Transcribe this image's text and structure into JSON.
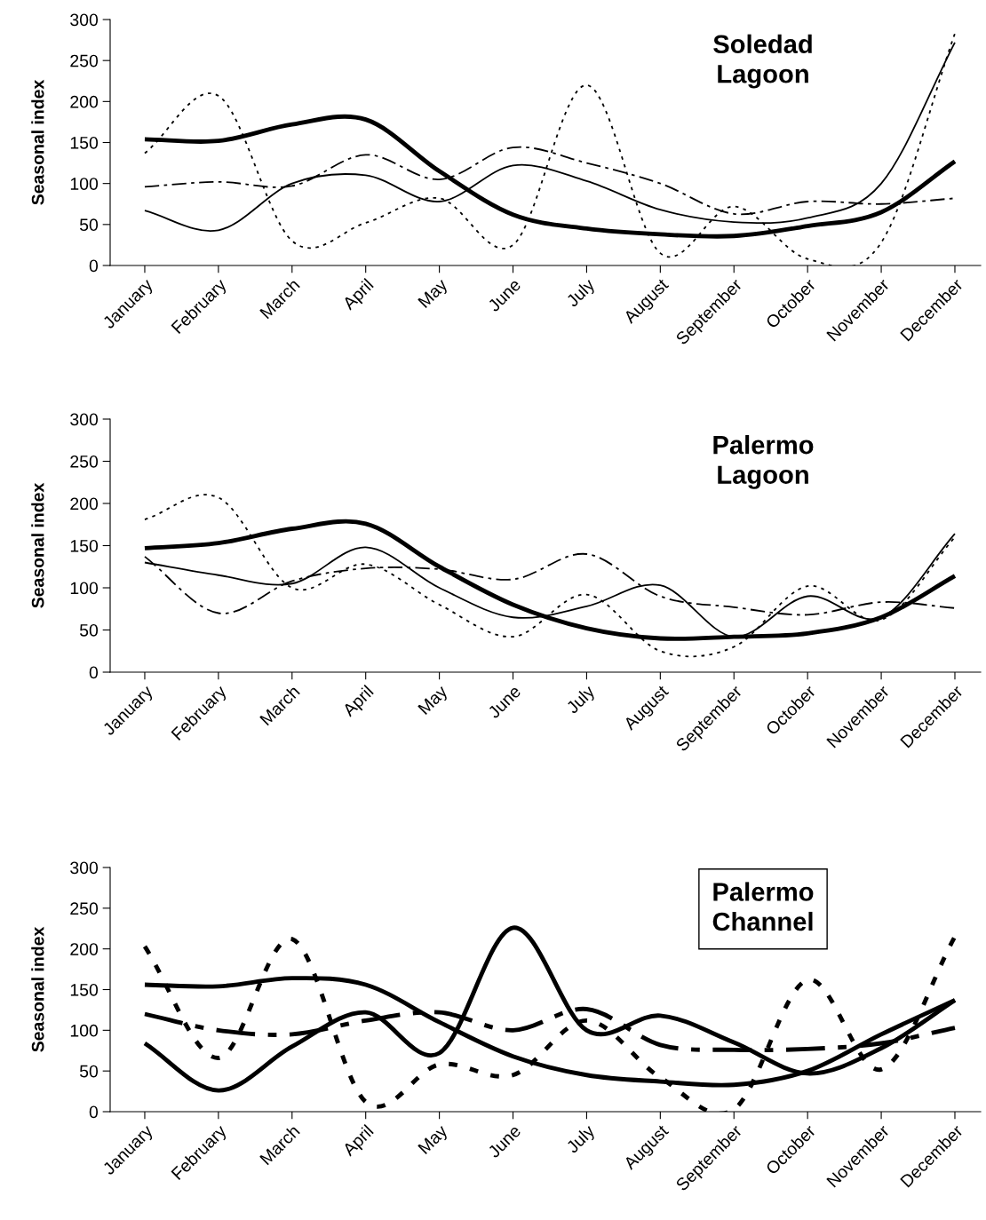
{
  "chart_data": [
    {
      "type": "line",
      "title": "Soledad\nLagoon",
      "ylabel": "Seasonal index",
      "categories": [
        "January",
        "February",
        "March",
        "April",
        "May",
        "June",
        "July",
        "August",
        "September",
        "October",
        "November",
        "December"
      ],
      "ylim": [
        0,
        300
      ],
      "yticks": [
        0,
        50,
        100,
        150,
        200,
        250,
        300
      ],
      "grid": false,
      "marker": "none",
      "series": [
        {
          "color": "#000000",
          "line_style": "solid",
          "values": [
            154,
            152,
            172,
            178,
            115,
            62,
            45,
            38,
            36,
            48,
            65,
            127
          ]
        },
        {
          "color": "#000000",
          "line_style": "solid",
          "values": [
            67,
            43,
            100,
            110,
            78,
            122,
            103,
            68,
            53,
            58,
            100,
            272
          ]
        },
        {
          "color": "#000000",
          "line_style": "dotted",
          "values": [
            137,
            207,
            30,
            52,
            82,
            25,
            220,
            15,
            72,
            8,
            28,
            283
          ]
        },
        {
          "color": "#000000",
          "line_style": "dashdot",
          "values": [
            96,
            102,
            97,
            135,
            105,
            144,
            125,
            100,
            63,
            78,
            75,
            82
          ]
        }
      ]
    },
    {
      "type": "line",
      "title": "Palermo\nLagoon",
      "ylabel": "Seasonal index",
      "categories": [
        "January",
        "February",
        "March",
        "April",
        "May",
        "June",
        "July",
        "August",
        "September",
        "October",
        "November",
        "December"
      ],
      "ylim": [
        0,
        300
      ],
      "yticks": [
        0,
        50,
        100,
        150,
        200,
        250,
        300
      ],
      "grid": false,
      "marker": "none",
      "series": [
        {
          "color": "#000000",
          "line_style": "solid",
          "values": [
            147,
            153,
            170,
            176,
            125,
            80,
            52,
            40,
            42,
            46,
            65,
            114
          ]
        },
        {
          "color": "#000000",
          "line_style": "solid",
          "values": [
            130,
            115,
            105,
            148,
            100,
            65,
            78,
            103,
            42,
            90,
            65,
            164
          ]
        },
        {
          "color": "#000000",
          "line_style": "dotted",
          "values": [
            181,
            207,
            100,
            128,
            80,
            42,
            92,
            25,
            30,
            102,
            62,
            160
          ]
        },
        {
          "color": "#000000",
          "line_style": "dashdot",
          "values": [
            137,
            70,
            108,
            123,
            122,
            110,
            140,
            90,
            77,
            68,
            83,
            76
          ]
        }
      ]
    },
    {
      "type": "line",
      "title": "Palermo\nChannel",
      "ylabel": "Seasonal index",
      "categories": [
        "January",
        "February",
        "March",
        "April",
        "May",
        "June",
        "July",
        "August",
        "September",
        "October",
        "November",
        "December"
      ],
      "ylim": [
        0,
        300
      ],
      "yticks": [
        0,
        50,
        100,
        150,
        200,
        250,
        300
      ],
      "grid": false,
      "marker": "none",
      "series": [
        {
          "color": "#000000",
          "line_style": "solid",
          "values": [
            156,
            154,
            164,
            156,
            110,
            68,
            45,
            37,
            33,
            50,
            95,
            137
          ]
        },
        {
          "color": "#000000",
          "line_style": "solid",
          "values": [
            84,
            26,
            80,
            122,
            72,
            226,
            100,
            118,
            85,
            47,
            78,
            137
          ]
        },
        {
          "color": "#000000",
          "line_style": "dotted",
          "values": [
            203,
            66,
            212,
            12,
            58,
            45,
            112,
            42,
            3,
            162,
            52,
            215
          ]
        },
        {
          "color": "#000000",
          "line_style": "dashdot",
          "values": [
            120,
            100,
            95,
            112,
            122,
            100,
            126,
            82,
            76,
            77,
            84,
            103
          ]
        }
      ]
    }
  ]
}
